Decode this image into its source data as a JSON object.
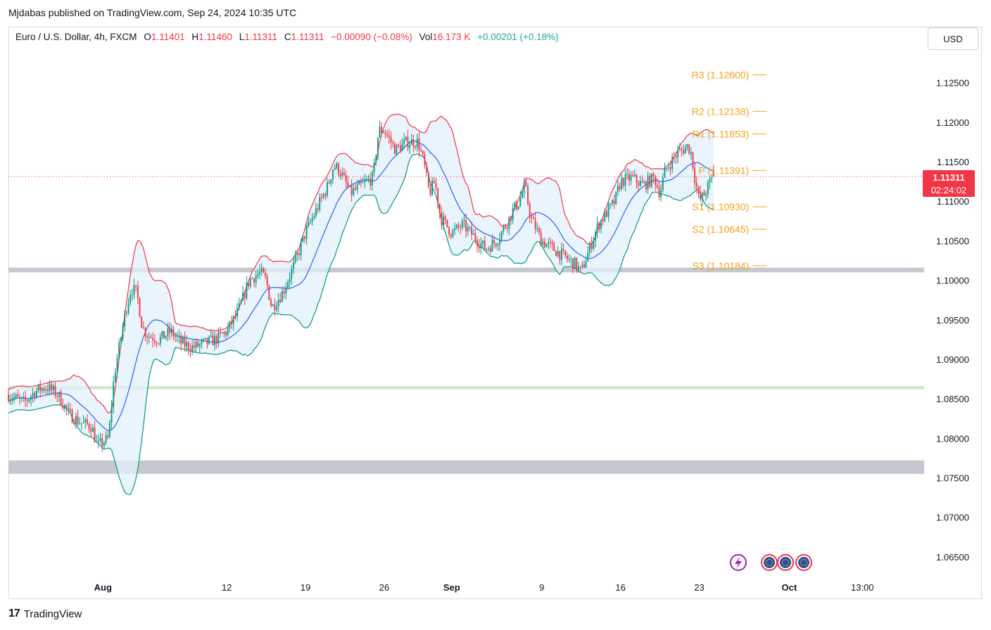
{
  "publisher": "Mjdabas published on TradingView.com, Sep 24, 2024 10:35 UTC",
  "legend": {
    "symbol": "Euro / U.S. Dollar, 4h, FXCM",
    "o_label": "O",
    "o": "1.11401",
    "h_label": "H",
    "h": "1.11460",
    "l_label": "L",
    "l": "1.11311",
    "c_label": "C",
    "c": "1.11311",
    "change": "−0.00090 (−0.08%)",
    "vol_label": "Vol",
    "vol": "16.173 K",
    "vol_change": "+0.00201 (+0.18%)"
  },
  "currency_button": "USD",
  "price_tag": {
    "price": "1.11311",
    "countdown": "02:24:02"
  },
  "branding": "TradingView",
  "colors": {
    "up": "#089981",
    "down": "#f23645",
    "basis": "#2962ff",
    "upper_band": "#f23645",
    "lower_band": "#089981",
    "band_fill": "#e3f0fb",
    "pivot": "#f7a21b",
    "zone_gray": "#b2b5be",
    "zone_green": "#c8e6c9"
  },
  "chart_data": {
    "type": "candlestick",
    "timeframe": "4h",
    "ylim": [
      1.0625,
      1.132
    ],
    "y_ticks": [
      "1.06500",
      "1.07000",
      "1.07500",
      "1.08000",
      "1.08500",
      "1.09000",
      "1.09500",
      "1.10000",
      "1.10500",
      "1.11000",
      "1.11500",
      "1.12000",
      "1.12500"
    ],
    "x_ticks": [
      {
        "label": "Aug",
        "day": 1
      },
      {
        "label": "12",
        "day": 12
      },
      {
        "label": "19",
        "day": 19
      },
      {
        "label": "26",
        "day": 26
      },
      {
        "label": "Sep",
        "day": 32
      },
      {
        "label": "9",
        "day": 40
      },
      {
        "label": "16",
        "day": 47
      },
      {
        "label": "23",
        "day": 54
      },
      {
        "label": "Oct",
        "day": 62
      },
      {
        "label": "13:00",
        "day": 68.5
      }
    ],
    "x_range_days": [
      -7.4,
      73.8
    ],
    "last_price": 1.11311,
    "pivots": [
      {
        "label": "R3 (1.12600)",
        "value": 1.126
      },
      {
        "label": "R2 (1.12138)",
        "value": 1.12138
      },
      {
        "label": "R1 (1.11853)",
        "value": 1.11853
      },
      {
        "label": "P (1.11391)",
        "value": 1.11391
      },
      {
        "label": "S1 (1.10930)",
        "value": 1.1093
      },
      {
        "label": "S2 (1.10645)",
        "value": 1.10645
      },
      {
        "label": "S3 (1.10184)",
        "value": 1.10184
      }
    ],
    "pivot_range_days": [
      52.8,
      60
    ],
    "zones": [
      {
        "from": 1.101,
        "to": 1.1016,
        "color": "gray"
      },
      {
        "from": 1.0862,
        "to": 1.0866,
        "color": "green"
      },
      {
        "from": 1.0755,
        "to": 1.0772,
        "color": "gray"
      }
    ],
    "close_path": [
      [
        -7.4,
        1.0855
      ],
      [
        -6,
        1.0845
      ],
      [
        -5,
        1.086
      ],
      [
        -4,
        1.0865
      ],
      [
        -3,
        1.0855
      ],
      [
        -2,
        1.083
      ],
      [
        -1,
        1.082
      ],
      [
        0,
        1.0815
      ],
      [
        0.5,
        1.079
      ],
      [
        1.5,
        1.08
      ],
      [
        2,
        1.088
      ],
      [
        2.5,
        1.092
      ],
      [
        3,
        1.096
      ],
      [
        3.5,
        1.099
      ],
      [
        4,
        1.0985
      ],
      [
        4.5,
        1.094
      ],
      [
        5,
        1.093
      ],
      [
        6,
        1.0925
      ],
      [
        7,
        1.0935
      ],
      [
        8,
        1.092
      ],
      [
        9,
        1.0915
      ],
      [
        10,
        1.092
      ],
      [
        11,
        1.0925
      ],
      [
        12,
        1.0935
      ],
      [
        13,
        1.096
      ],
      [
        14,
        1.1
      ],
      [
        15,
        1.101
      ],
      [
        15.5,
        1.1
      ],
      [
        16,
        1.0965
      ],
      [
        17,
        1.0985
      ],
      [
        18,
        1.102
      ],
      [
        19,
        1.106
      ],
      [
        20,
        1.109
      ],
      [
        21,
        1.112
      ],
      [
        21.5,
        1.1145
      ],
      [
        22,
        1.114
      ],
      [
        23,
        1.111
      ],
      [
        24,
        1.112
      ],
      [
        25,
        1.113
      ],
      [
        25.5,
        1.119
      ],
      [
        26,
        1.119
      ],
      [
        27,
        1.1165
      ],
      [
        28,
        1.1175
      ],
      [
        29,
        1.1175
      ],
      [
        29.5,
        1.115
      ],
      [
        30,
        1.111
      ],
      [
        30.5,
        1.1125
      ],
      [
        31,
        1.108
      ],
      [
        32,
        1.106
      ],
      [
        33,
        1.107
      ],
      [
        34,
        1.1055
      ],
      [
        35,
        1.104
      ],
      [
        36,
        1.105
      ],
      [
        37,
        1.1075
      ],
      [
        37.5,
        1.109
      ],
      [
        38,
        1.11
      ],
      [
        38.5,
        1.112
      ],
      [
        39,
        1.108
      ],
      [
        40,
        1.105
      ],
      [
        41,
        1.104
      ],
      [
        42,
        1.103
      ],
      [
        43,
        1.102
      ],
      [
        43.5,
        1.101
      ],
      [
        44,
        1.103
      ],
      [
        45,
        1.107
      ],
      [
        46,
        1.109
      ],
      [
        46.5,
        1.11
      ],
      [
        47,
        1.1125
      ],
      [
        48,
        1.113
      ],
      [
        49,
        1.112
      ],
      [
        50,
        1.113
      ],
      [
        50.5,
        1.111
      ],
      [
        51,
        1.114
      ],
      [
        52,
        1.116
      ],
      [
        53,
        1.117
      ],
      [
        53.3,
        1.116
      ],
      [
        53.6,
        1.113
      ],
      [
        54,
        1.11
      ],
      [
        54.5,
        1.111
      ],
      [
        55,
        1.1125
      ],
      [
        55.3,
        1.1131
      ]
    ]
  }
}
